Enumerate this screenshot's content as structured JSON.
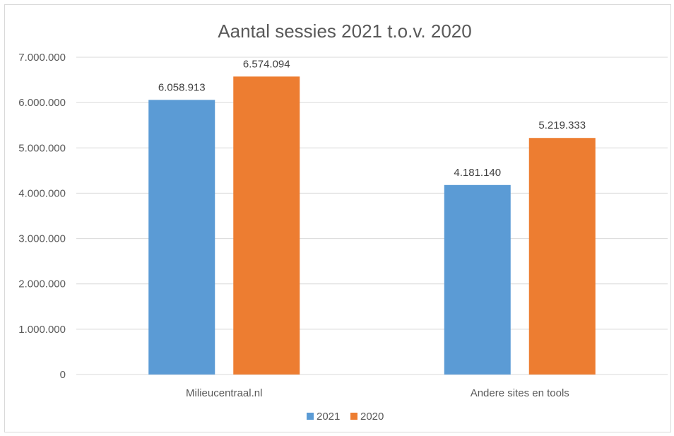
{
  "chart_data": {
    "type": "bar",
    "title": "Aantal sessies 2021 t.o.v. 2020",
    "categories": [
      "Milieucentraal.nl",
      "Andere sites en tools"
    ],
    "series": [
      {
        "name": "2021",
        "color": "#5b9bd5",
        "values": [
          6058913,
          4181140
        ],
        "value_labels": [
          "6.058.913",
          "4.181.140"
        ]
      },
      {
        "name": "2020",
        "color": "#ed7d31",
        "values": [
          6574094,
          5219333
        ],
        "value_labels": [
          "6.574.094",
          "5.219.333"
        ]
      }
    ],
    "ylim": [
      0,
      7000000
    ],
    "y_ticks": [
      0,
      1000000,
      2000000,
      3000000,
      4000000,
      5000000,
      6000000,
      7000000
    ],
    "y_tick_labels": [
      "0",
      "1.000.000",
      "2.000.000",
      "3.000.000",
      "4.000.000",
      "5.000.000",
      "6.000.000",
      "7.000.000"
    ],
    "grid": true,
    "legend_position": "bottom"
  }
}
